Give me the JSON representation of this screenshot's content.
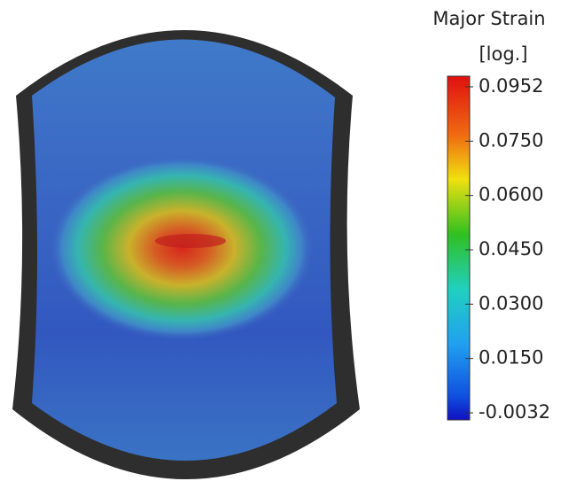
{
  "colorbar": {
    "title": "Major Strain",
    "unit": "[log.]",
    "labels": [
      "0.0952",
      "0.0750",
      "0.0600",
      "0.0450",
      "0.0300",
      "0.0150",
      "-0.0032"
    ]
  }
}
